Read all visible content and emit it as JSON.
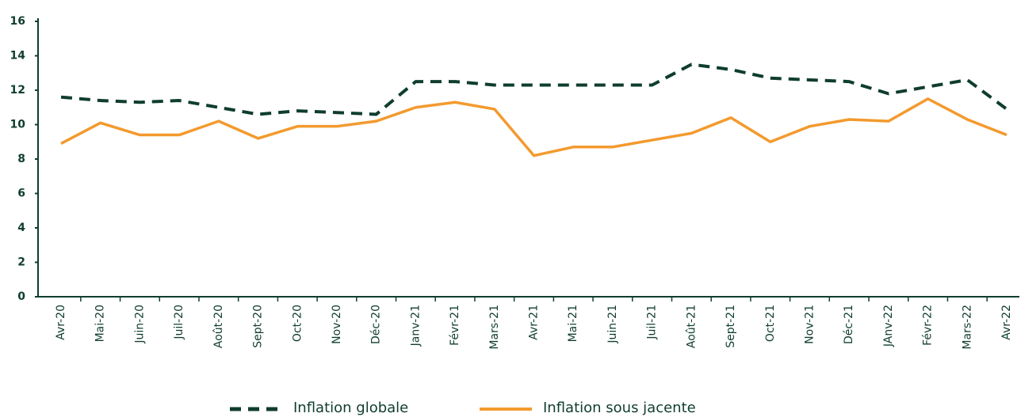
{
  "chart_data": {
    "type": "line",
    "categories": [
      "Avr-20",
      "Mai-20",
      "Juin-20",
      "Juil-20",
      "Août-20",
      "Sept-20",
      "Oct-20",
      "Nov-20",
      "Déc-20",
      "Janv-21",
      "Févr-21",
      "Mars-21",
      "Avr-21",
      "Mai-21",
      "Juin-21",
      "Juil-21",
      "Août-21",
      "Sept-21",
      "Oct-21",
      "Nov-21",
      "Déc-21",
      "JAnv-22",
      "Févr-22",
      "Mars-22",
      "Avr-22"
    ],
    "series": [
      {
        "name": "Inflation globale",
        "color": "#0f3d2e",
        "dash": true,
        "values": [
          11.6,
          11.4,
          11.3,
          11.4,
          11.0,
          10.6,
          10.8,
          10.7,
          10.6,
          12.5,
          12.5,
          12.3,
          12.3,
          12.3,
          12.3,
          12.3,
          13.5,
          13.2,
          12.7,
          12.6,
          12.5,
          11.8,
          12.2,
          12.6,
          10.9
        ]
      },
      {
        "name": "Inflation sous jacente",
        "color": "#f39a2e",
        "dash": false,
        "values": [
          8.9,
          10.1,
          9.4,
          9.4,
          10.2,
          9.2,
          9.9,
          9.9,
          10.2,
          11.0,
          11.3,
          10.9,
          8.2,
          8.7,
          8.7,
          9.1,
          9.5,
          10.4,
          9.0,
          9.9,
          10.3,
          10.2,
          11.5,
          10.3,
          9.4
        ]
      }
    ],
    "ylim": [
      0,
      16
    ],
    "yticks": [
      0,
      2,
      4,
      6,
      8,
      10,
      12,
      14,
      16
    ],
    "grid": false
  }
}
